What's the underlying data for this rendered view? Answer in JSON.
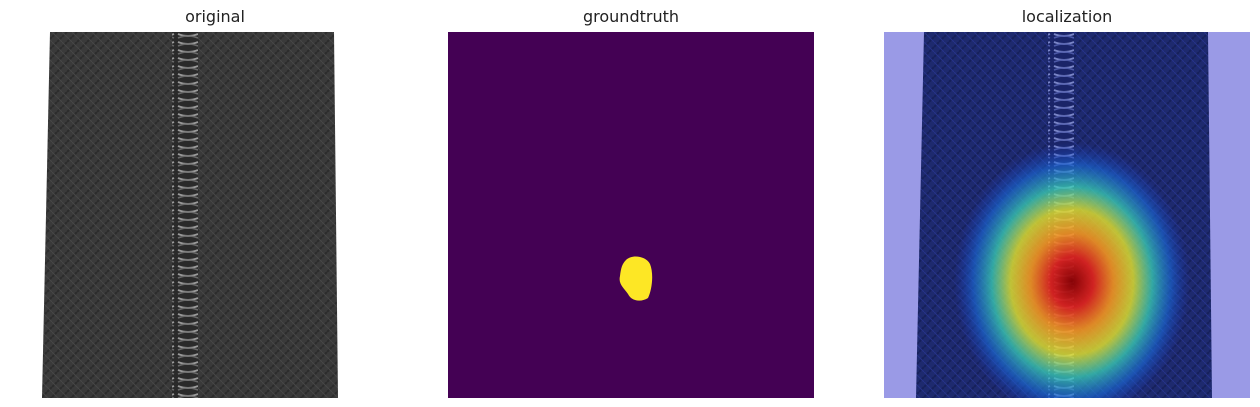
{
  "panels": [
    {
      "title": "original"
    },
    {
      "title": "groundtruth"
    },
    {
      "title": "localization"
    }
  ],
  "colors": {
    "mask_background": "#440154",
    "mask_foreground": "#fde725",
    "zipper_fabric": "#3b3b3b",
    "zipper_teeth": "#8a8a8a",
    "overlay_blue": "#9a9ae6"
  }
}
